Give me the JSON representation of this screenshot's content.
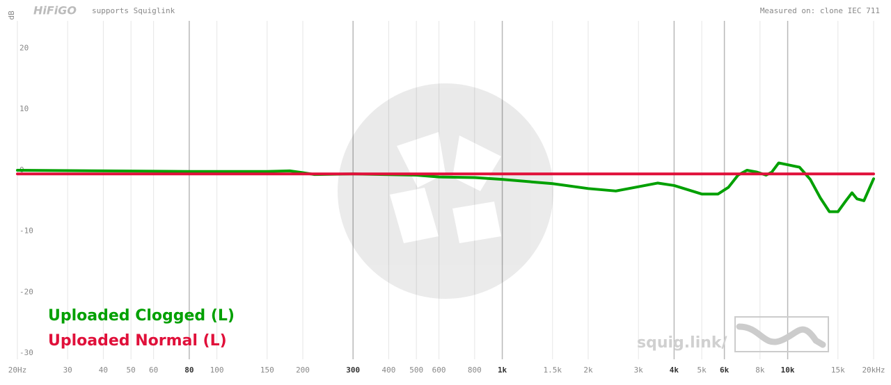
{
  "header": {
    "logo": "HiFiGO",
    "tagline": "supports Squiglink",
    "measured": "Measured on: clone IEC 711"
  },
  "watermark": "squig.link/",
  "chart_data": {
    "type": "line",
    "ylabel": "dB",
    "xscale": "log",
    "grid": "x",
    "legend": "lower left",
    "xlim": [
      20,
      20000
    ],
    "ylim": [
      -31,
      24.5
    ],
    "xticks": [
      {
        "value": 20,
        "label": "20Hz"
      },
      30,
      40,
      50,
      60,
      {
        "value": 80,
        "label": "80",
        "bold": true
      },
      100,
      150,
      200,
      {
        "value": 300,
        "label": "300",
        "bold": true
      },
      400,
      500,
      600,
      800,
      {
        "value": 1000,
        "label": "1k",
        "bold": true
      },
      {
        "value": 1500,
        "label": "1.5k"
      },
      {
        "value": 2000,
        "label": "2k"
      },
      {
        "value": 3000,
        "label": "3k"
      },
      {
        "value": 4000,
        "label": "4k",
        "bold": true
      },
      {
        "value": 5000,
        "label": "5k"
      },
      {
        "value": 6000,
        "label": "6k",
        "bold": true
      },
      {
        "value": 8000,
        "label": "8k"
      },
      {
        "value": 10000,
        "label": "10k",
        "bold": true
      },
      {
        "value": 15000,
        "label": "15k"
      },
      {
        "value": 20000,
        "label": "20kHz"
      }
    ],
    "yticks": [
      20,
      10,
      0,
      -10,
      -20,
      -30
    ],
    "series": [
      {
        "name": "Uploaded Clogged (L)",
        "color": "#00a000",
        "x": [
          20,
          40,
          80,
          100,
          150,
          180,
          200,
          220,
          300,
          500,
          600,
          800,
          1000,
          1500,
          2000,
          2500,
          3000,
          3500,
          4000,
          5000,
          5700,
          6200,
          6700,
          7200,
          7800,
          8400,
          8800,
          9300,
          10000,
          11000,
          12000,
          13000,
          14000,
          15000,
          16000,
          16800,
          17500,
          18500,
          20000
        ],
        "values": [
          0,
          -0.1,
          -0.2,
          -0.2,
          -0.2,
          -0.1,
          -0.4,
          -0.7,
          -0.6,
          -0.8,
          -1.1,
          -1.2,
          -1.5,
          -2.2,
          -3.0,
          -3.4,
          -2.7,
          -2.1,
          -2.5,
          -3.9,
          -3.9,
          -2.8,
          -0.8,
          0.0,
          -0.3,
          -0.8,
          -0.3,
          1.2,
          0.9,
          0.5,
          -1.5,
          -4.5,
          -6.8,
          -6.8,
          -5.0,
          -3.7,
          -4.7,
          -5.0,
          -1.4
        ]
      },
      {
        "name": "Uploaded Normal (L)",
        "color": "#e0103a",
        "x": [
          20,
          20000
        ],
        "values": [
          -0.6,
          -0.6
        ]
      }
    ]
  }
}
